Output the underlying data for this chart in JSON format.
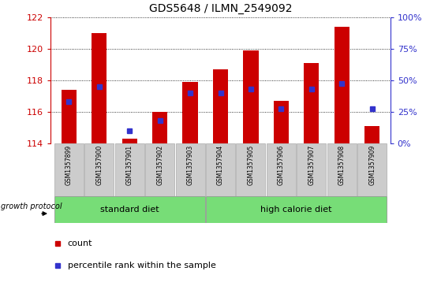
{
  "title": "GDS5648 / ILMN_2549092",
  "samples": [
    "GSM1357899",
    "GSM1357900",
    "GSM1357901",
    "GSM1357902",
    "GSM1357903",
    "GSM1357904",
    "GSM1357905",
    "GSM1357906",
    "GSM1357907",
    "GSM1357908",
    "GSM1357909"
  ],
  "red_values": [
    117.4,
    121.0,
    114.3,
    116.0,
    117.9,
    118.7,
    119.9,
    116.7,
    119.1,
    121.4,
    115.1
  ],
  "blue_pct": [
    33,
    45,
    10,
    18,
    40,
    40,
    43,
    27,
    43,
    47,
    27
  ],
  "ymin": 114,
  "ymax": 122,
  "yticks_left": [
    114,
    116,
    118,
    120,
    122
  ],
  "yticks_right_vals": [
    0,
    25,
    50,
    75,
    100
  ],
  "yticks_right_labels": [
    "0%",
    "25%",
    "50%",
    "75%",
    "100%"
  ],
  "group1_label": "standard diet",
  "group2_label": "high calorie diet",
  "group1_count": 5,
  "legend_count_label": "count",
  "legend_pct_label": "percentile rank within the sample",
  "factor_label": "growth protocol",
  "bar_color": "#cc0000",
  "blue_color": "#3333cc",
  "title_color": "#000000",
  "left_tick_color": "#cc0000",
  "right_tick_color": "#3333cc",
  "group_bg_color": "#77dd77",
  "tick_bg_color": "#cccccc",
  "bar_width": 0.5
}
